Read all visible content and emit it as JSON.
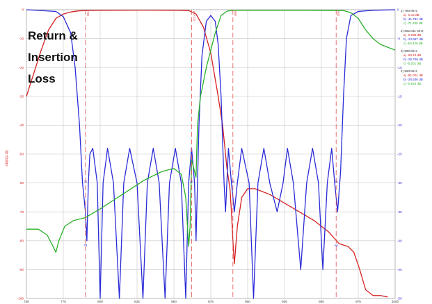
{
  "title_lines": [
    "Return &",
    "Insertion",
    "Loss"
  ],
  "colors": {
    "red": "#d42020",
    "blue": "#2a2ad8",
    "green": "#28b028",
    "grid": "#c8c8c8",
    "marker": "#e05050"
  },
  "chart_data": {
    "type": "line",
    "title": "Return & Insertion Loss",
    "xlabel": "",
    "ylabel_left": "DB(|S[2,1]|)",
    "ylabel_right": "",
    "xlim": [
      750,
      1000
    ],
    "ylim_left": [
      -100,
      0
    ],
    "ylim_right": [
      -50,
      0
    ],
    "x_ticks": [
      "750",
      "775",
      "800",
      "825",
      "850",
      "875",
      "900",
      "925",
      "950",
      "975",
      "1000"
    ],
    "y_left_ticks": [
      "0",
      "-10",
      "-20",
      "-30",
      "-40",
      "-50",
      "-60",
      "-70",
      "-80",
      "-90",
      "-100"
    ],
    "y_right_ticks": [
      "0",
      "-5",
      "-10",
      "-15",
      "-20",
      "-25",
      "-30",
      "-35",
      "-40",
      "-45",
      "-50"
    ],
    "grid": true,
    "markers": [
      {
        "x": 790,
        "label": "790",
        "bottom_label": "78",
        "point_label": "72"
      },
      {
        "x": 862,
        "label": "862.031",
        "bottom_label": "",
        "point_label": "26"
      },
      {
        "x": 890,
        "label": "890",
        "bottom_label": "",
        "point_label": "35"
      },
      {
        "x": 960,
        "label": "960",
        "bottom_label": "Ap",
        "point_label": "60"
      }
    ],
    "series": [
      {
        "name": "a",
        "color": "#d42020",
        "axis": "left",
        "points": [
          [
            750,
            -30
          ],
          [
            755,
            -22
          ],
          [
            760,
            -14
          ],
          [
            765,
            -7
          ],
          [
            770,
            -3
          ],
          [
            775,
            -1.5
          ],
          [
            780,
            -0.8
          ],
          [
            785,
            -0.4
          ],
          [
            790,
            -0.3
          ],
          [
            800,
            -0.2
          ],
          [
            830,
            -0.15
          ],
          [
            850,
            -0.2
          ],
          [
            860,
            -0.3
          ],
          [
            865,
            -1.5
          ],
          [
            870,
            -6
          ],
          [
            875,
            -15
          ],
          [
            880,
            -30
          ],
          [
            883,
            -40
          ],
          [
            886,
            -55
          ],
          [
            888,
            -62
          ],
          [
            889,
            -70
          ],
          [
            890,
            -80
          ],
          [
            891,
            -88
          ],
          [
            893,
            -75
          ],
          [
            896,
            -65
          ],
          [
            900,
            -62
          ],
          [
            905,
            -62
          ],
          [
            915,
            -64
          ],
          [
            925,
            -67
          ],
          [
            935,
            -70
          ],
          [
            945,
            -73
          ],
          [
            955,
            -77
          ],
          [
            962,
            -81
          ],
          [
            968,
            -82
          ],
          [
            972,
            -84
          ],
          [
            976,
            -90
          ],
          [
            980,
            -97
          ],
          [
            985,
            -99
          ],
          [
            990,
            -99
          ],
          [
            995,
            -99.5
          ]
        ]
      },
      {
        "name": "b",
        "color": "#2a2ad8",
        "axis": "right",
        "points": [
          [
            750,
            0
          ],
          [
            770,
            -0.3
          ],
          [
            775,
            -1.2
          ],
          [
            780,
            -4
          ],
          [
            783,
            -10
          ],
          [
            786,
            -20
          ],
          [
            788,
            -30
          ],
          [
            790,
            -35
          ],
          [
            791,
            -40
          ],
          [
            792,
            -30
          ],
          [
            793,
            -25
          ],
          [
            795,
            -24
          ],
          [
            798,
            -30
          ],
          [
            800,
            -50
          ],
          [
            802,
            -30
          ],
          [
            805,
            -24
          ],
          [
            809,
            -30
          ],
          [
            813,
            -50
          ],
          [
            816,
            -30
          ],
          [
            820,
            -24
          ],
          [
            825,
            -30
          ],
          [
            829,
            -50
          ],
          [
            832,
            -30
          ],
          [
            836,
            -24
          ],
          [
            840,
            -30
          ],
          [
            844,
            -50
          ],
          [
            847,
            -30
          ],
          [
            851,
            -24
          ],
          [
            855,
            -30
          ],
          [
            858,
            -50
          ],
          [
            860,
            -30
          ],
          [
            862,
            -24
          ],
          [
            864,
            -30
          ],
          [
            865,
            -40
          ],
          [
            867,
            -20
          ],
          [
            869,
            -8
          ],
          [
            872,
            -2
          ],
          [
            875,
            -1
          ],
          [
            878,
            -2
          ],
          [
            880,
            -6
          ],
          [
            882,
            -15
          ],
          [
            884,
            -30
          ],
          [
            885,
            -35
          ],
          [
            887,
            -24
          ],
          [
            889,
            -30
          ],
          [
            891,
            -35
          ],
          [
            893,
            -30
          ],
          [
            896,
            -24
          ],
          [
            901,
            -30
          ],
          [
            904,
            -50
          ],
          [
            907,
            -30
          ],
          [
            911,
            -24
          ],
          [
            915,
            -30
          ],
          [
            920,
            -35
          ],
          [
            924,
            -30
          ],
          [
            927,
            -24
          ],
          [
            931,
            -30
          ],
          [
            936,
            -45
          ],
          [
            940,
            -30
          ],
          [
            944,
            -24
          ],
          [
            948,
            -30
          ],
          [
            951,
            -45
          ],
          [
            954,
            -30
          ],
          [
            957,
            -24
          ],
          [
            959,
            -30
          ],
          [
            961,
            -35
          ],
          [
            963,
            -28
          ],
          [
            965,
            -15
          ],
          [
            967,
            -5
          ],
          [
            970,
            -1
          ],
          [
            975,
            -0.3
          ],
          [
            985,
            -0.1
          ],
          [
            1000,
            0
          ]
        ]
      },
      {
        "name": "c",
        "color": "#28b028",
        "axis": "left",
        "points": [
          [
            750,
            -76
          ],
          [
            758,
            -76
          ],
          [
            764,
            -78
          ],
          [
            768,
            -82
          ],
          [
            770,
            -84
          ],
          [
            772,
            -80
          ],
          [
            776,
            -75
          ],
          [
            782,
            -73
          ],
          [
            790,
            -72
          ],
          [
            800,
            -69
          ],
          [
            815,
            -64
          ],
          [
            830,
            -59
          ],
          [
            842,
            -56
          ],
          [
            850,
            -55
          ],
          [
            855,
            -57
          ],
          [
            858,
            -65
          ],
          [
            860,
            -82
          ],
          [
            861,
            -75
          ],
          [
            862,
            -52
          ],
          [
            865,
            -58
          ],
          [
            866,
            -40
          ],
          [
            868,
            -30
          ],
          [
            872,
            -20
          ],
          [
            878,
            -8
          ],
          [
            882,
            -2
          ],
          [
            886,
            -0.5
          ],
          [
            890,
            -0.2
          ],
          [
            940,
            -0.2
          ],
          [
            965,
            -0.3
          ],
          [
            970,
            -1
          ],
          [
            975,
            -3
          ],
          [
            980,
            -7
          ],
          [
            985,
            -10
          ],
          [
            990,
            -12
          ],
          [
            995,
            -13
          ],
          [
            1000,
            -14
          ]
        ]
      }
    ],
    "readouts": [
      {
        "head": "1) 790 MHz",
        "lines": [
          "a) -0.14 dB",
          "b) -41.781 dB",
          "c) -71.205 dB"
        ]
      },
      {
        "head": "2) 862.031 MHz",
        "lines": [
          "a) -0.238 dB",
          "b) -23.987 dB",
          "c) -54.429 dB"
        ]
      },
      {
        "head": "3) 890 MHz",
        "lines": [
          "a) -60.19 dB",
          "b) -26.796 dB",
          "c) -0.201 dB"
        ]
      },
      {
        "head": "4) 960 MHz",
        "lines": [
          "a) -81.001 dB",
          "b) -26.536 dB",
          "c) -0.164 dB"
        ]
      }
    ]
  }
}
